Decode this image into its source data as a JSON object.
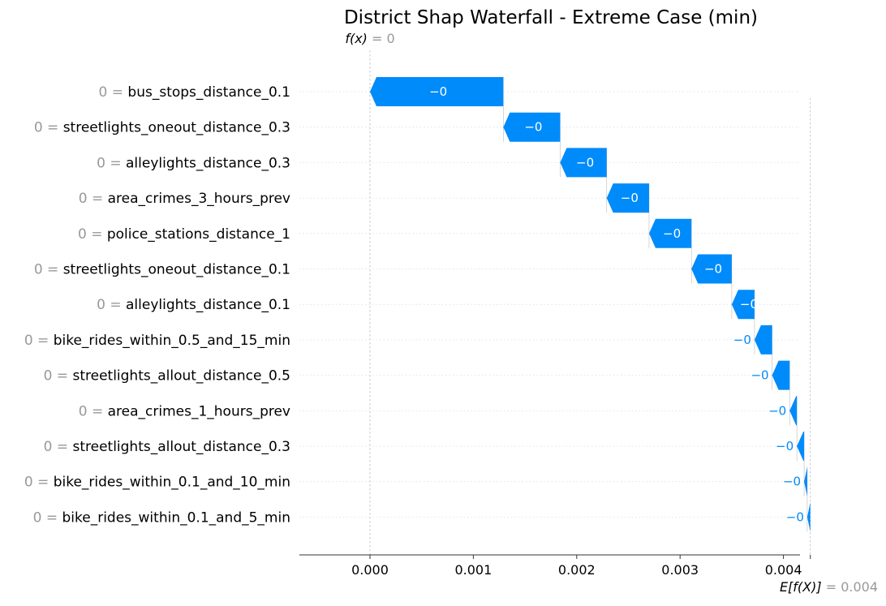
{
  "chart_data": {
    "type": "waterfall",
    "title": "District Shap Waterfall - Extreme Case (min)",
    "fx_label": "f(x) = 0",
    "fx_symbol": "f(x)",
    "fx_value": "0",
    "expected_symbol": "E[f(X)]",
    "expected_value": "0.004",
    "xlim": [
      -0.00068,
      0.00423
    ],
    "xticks": [
      0.0,
      0.001,
      0.002,
      0.003,
      0.004
    ],
    "xtick_labels": [
      "0.000",
      "0.001",
      "0.002",
      "0.003",
      "0.004"
    ],
    "base_value": 0.00426,
    "output_value": 0.0,
    "bar_color": "#008bfb",
    "features": [
      {
        "feature_value": "0",
        "eq": "=",
        "name": "bus_stops_distance_0.1",
        "start": 0.0,
        "end": 0.00129,
        "label": "−0"
      },
      {
        "feature_value": "0",
        "eq": "=",
        "name": "streetlights_oneout_distance_0.3",
        "start": 0.00129,
        "end": 0.00184,
        "label": "−0"
      },
      {
        "feature_value": "0",
        "eq": "=",
        "name": "alleylights_distance_0.3",
        "start": 0.00184,
        "end": 0.00229,
        "label": "−0"
      },
      {
        "feature_value": "0",
        "eq": "=",
        "name": "area_crimes_3_hours_prev",
        "start": 0.00229,
        "end": 0.0027,
        "label": "−0"
      },
      {
        "feature_value": "0",
        "eq": "=",
        "name": "police_stations_distance_1",
        "start": 0.0027,
        "end": 0.00311,
        "label": "−0"
      },
      {
        "feature_value": "0",
        "eq": "=",
        "name": "streetlights_oneout_distance_0.1",
        "start": 0.00311,
        "end": 0.0035,
        "label": "−0"
      },
      {
        "feature_value": "0",
        "eq": "=",
        "name": "alleylights_distance_0.1",
        "start": 0.0035,
        "end": 0.00372,
        "label": "−0"
      },
      {
        "feature_value": "0",
        "eq": "=",
        "name": "bike_rides_within_0.5_and_15_min",
        "start": 0.00372,
        "end": 0.00389,
        "label": "−0"
      },
      {
        "feature_value": "0",
        "eq": "=",
        "name": "streetlights_allout_distance_0.5",
        "start": 0.00389,
        "end": 0.00406,
        "label": "−0"
      },
      {
        "feature_value": "0",
        "eq": "=",
        "name": "area_crimes_1_hours_prev",
        "start": 0.00406,
        "end": 0.00413,
        "label": "−0"
      },
      {
        "feature_value": "0",
        "eq": "=",
        "name": "streetlights_allout_distance_0.3",
        "start": 0.00413,
        "end": 0.0042,
        "label": "−0"
      },
      {
        "feature_value": "0",
        "eq": "=",
        "name": "bike_rides_within_0.1_and_10_min",
        "start": 0.0042,
        "end": 0.00423,
        "label": "−0"
      },
      {
        "feature_value": "0",
        "eq": "=",
        "name": "bike_rides_within_0.1_and_5_min",
        "start": 0.00423,
        "end": 0.00426,
        "label": "−0"
      }
    ]
  }
}
